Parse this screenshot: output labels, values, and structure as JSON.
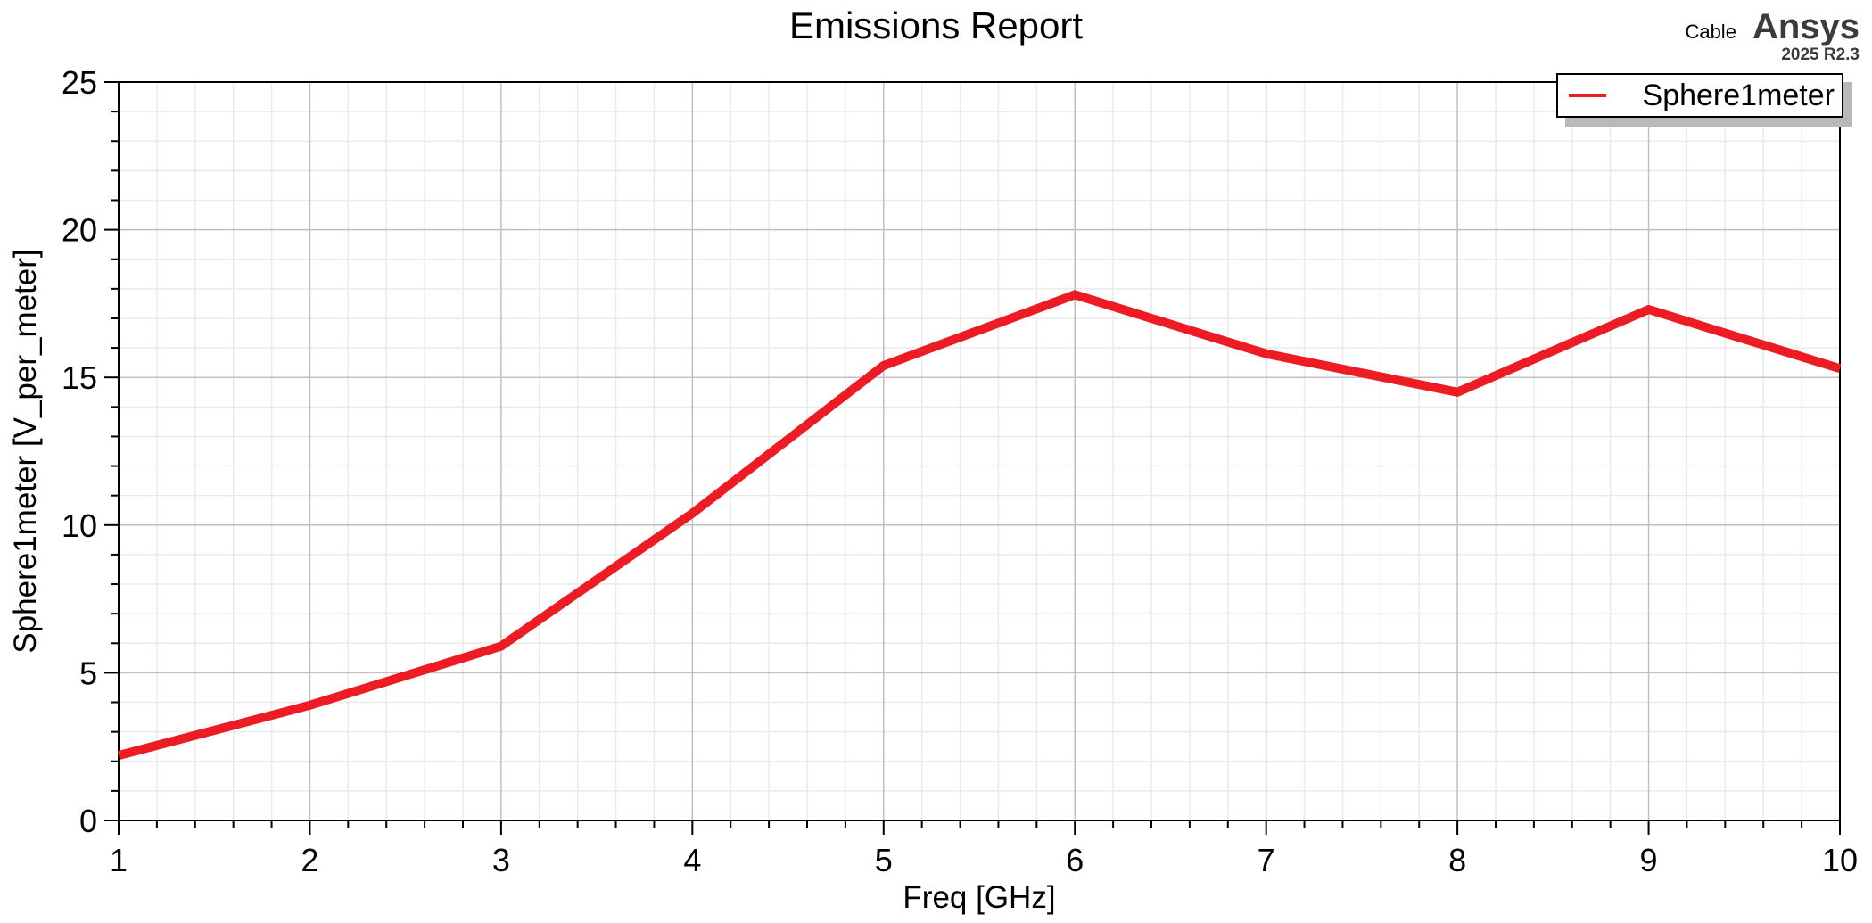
{
  "header": {
    "title": "Emissions Report",
    "brand": {
      "design_name": "Cable",
      "logo": "Ansys",
      "version": "2025 R2.3"
    }
  },
  "legend": {
    "entries": [
      {
        "label": "Sphere1meter",
        "color": "#ed1c24"
      }
    ]
  },
  "chart_data": {
    "type": "line",
    "title": "Emissions Report",
    "xlabel": "Freq [GHz]",
    "ylabel": "Sphere1meter [V_per_meter]",
    "xlim": [
      1,
      10
    ],
    "ylim": [
      0,
      25
    ],
    "x_major_ticks": [
      1,
      2,
      3,
      4,
      5,
      6,
      7,
      8,
      9,
      10
    ],
    "x_tick_labels": [
      "1",
      "2",
      "3",
      "4",
      "5",
      "6",
      "7",
      "8",
      "9",
      "10"
    ],
    "y_major_ticks": [
      0,
      5,
      10,
      15,
      20,
      25
    ],
    "y_tick_labels": [
      "0",
      "5",
      "10",
      "15",
      "20",
      "25"
    ],
    "x_minor_step": 0.2,
    "y_minor_step": 1,
    "grid": true,
    "legend_position": "top-right",
    "series": [
      {
        "name": "Sphere1meter",
        "color": "#ed1c24",
        "line_width": 10,
        "x": [
          1,
          2,
          3,
          4,
          5,
          6,
          7,
          8,
          9,
          10
        ],
        "y": [
          2.2,
          3.9,
          5.9,
          10.4,
          15.4,
          17.8,
          15.8,
          14.5,
          17.3,
          15.3
        ]
      }
    ]
  },
  "colors": {
    "series_red": "#ed1c24",
    "grid_minor": "#eaeaea",
    "grid_major": "#c0c0c0",
    "axis": "#000000",
    "legend_shadow": "#b9b9b9",
    "brand_gray": "#3b3b3b"
  }
}
